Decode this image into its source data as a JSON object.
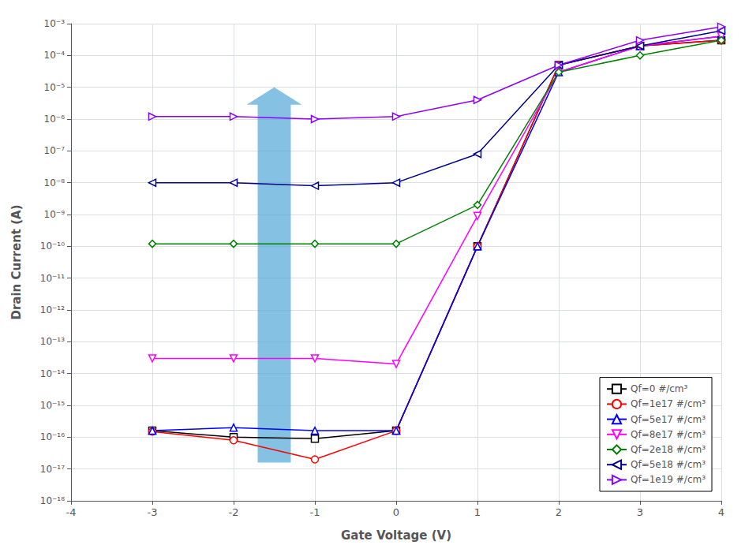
{
  "chart_data": {
    "type": "line",
    "xlabel": "Gate Voltage (V)",
    "ylabel": "Drain Current (A)",
    "log": "y",
    "grid": true,
    "legend": "lower right",
    "xlim": [
      -4,
      4
    ],
    "xticks": [
      -4,
      -3,
      -2,
      -1,
      0,
      1,
      2,
      3,
      4
    ],
    "ylim": [
      1e-18,
      0.001
    ],
    "yticks": [
      {
        "value": 1e-18,
        "label": "10⁻¹⁸"
      },
      {
        "value": 1e-17,
        "label": "10⁻¹⁷"
      },
      {
        "value": 1e-16,
        "label": "10⁻¹⁶"
      },
      {
        "value": 1e-15,
        "label": "10⁻¹⁵"
      },
      {
        "value": 1e-14,
        "label": "10⁻¹⁴"
      },
      {
        "value": 1e-13,
        "label": "10⁻¹³"
      },
      {
        "value": 1e-12,
        "label": "10⁻¹²"
      },
      {
        "value": 1e-11,
        "label": "10⁻¹¹"
      },
      {
        "value": 1e-10,
        "label": "10⁻¹⁰"
      },
      {
        "value": 1e-09,
        "label": "10⁻⁹"
      },
      {
        "value": 1e-08,
        "label": "10⁻⁸"
      },
      {
        "value": 1e-07,
        "label": "10⁻⁷"
      },
      {
        "value": 1e-06,
        "label": "10⁻⁶"
      },
      {
        "value": 1e-05,
        "label": "10⁻⁵"
      },
      {
        "value": 0.0001,
        "label": "10⁻⁴"
      },
      {
        "value": 0.001,
        "label": "10⁻³"
      }
    ],
    "series": [
      {
        "name": "Qf=0 #/cm³",
        "color": "#000000",
        "marker": "square",
        "x": [
          -3,
          -2,
          -1,
          0,
          1,
          2,
          3,
          4
        ],
        "values": [
          1.6e-16,
          1e-16,
          9e-17,
          1.6e-16,
          1e-10,
          5e-05,
          0.0002,
          0.0003
        ]
      },
      {
        "name": "Qf=1e17 #/cm³",
        "color": "#ff0000",
        "marker": "circle",
        "x": [
          -3,
          -2,
          -1,
          0,
          1,
          2,
          3,
          4
        ],
        "values": [
          1.5e-16,
          8e-17,
          2e-17,
          1.6e-16,
          1e-10,
          5e-05,
          0.0002,
          0.0003
        ]
      },
      {
        "name": "Qf=5e17 #/cm³",
        "color": "#0000ff",
        "marker": "triangle-up",
        "x": [
          -3,
          -2,
          -1,
          0,
          1,
          2,
          3,
          4
        ],
        "values": [
          1.6e-16,
          2e-16,
          1.6e-16,
          1.6e-16,
          1e-10,
          3e-05,
          0.0002,
          0.0004
        ]
      },
      {
        "name": "Qf=8e17 #/cm³",
        "color": "#ff00ff",
        "marker": "triangle-down",
        "x": [
          -3,
          -2,
          -1,
          0,
          1,
          2,
          3,
          4
        ],
        "values": [
          3e-14,
          3e-14,
          3e-14,
          2e-14,
          9e-10,
          3e-05,
          0.0002,
          0.0004
        ]
      },
      {
        "name": "Qf=2e18 #/cm³",
        "color": "#008000",
        "marker": "diamond",
        "x": [
          -3,
          -2,
          -1,
          0,
          1,
          2,
          3,
          4
        ],
        "values": [
          1.2e-10,
          1.2e-10,
          1.2e-10,
          1.2e-10,
          2e-09,
          3e-05,
          0.0001,
          0.0003
        ]
      },
      {
        "name": "Qf=5e18 #/cm³",
        "color": "#00008b",
        "marker": "triangle-left",
        "x": [
          -3,
          -2,
          -1,
          0,
          1,
          2,
          3,
          4
        ],
        "values": [
          1e-08,
          1e-08,
          8e-09,
          1e-08,
          8e-08,
          5e-05,
          0.0002,
          0.0006
        ]
      },
      {
        "name": "Qf=1e19 #/cm³",
        "color": "#8b00ff",
        "marker": "triangle-right",
        "x": [
          -3,
          -2,
          -1,
          0,
          1,
          2,
          3,
          4
        ],
        "values": [
          1.2e-06,
          1.2e-06,
          1e-06,
          1.2e-06,
          4e-06,
          5e-05,
          0.0003,
          0.0008
        ]
      }
    ],
    "annotations": [
      {
        "type": "arrow",
        "x": -1.5,
        "y_start": 1.584893192461111e-17,
        "y_end": 1e-05,
        "color": "#5bacd8"
      }
    ]
  }
}
